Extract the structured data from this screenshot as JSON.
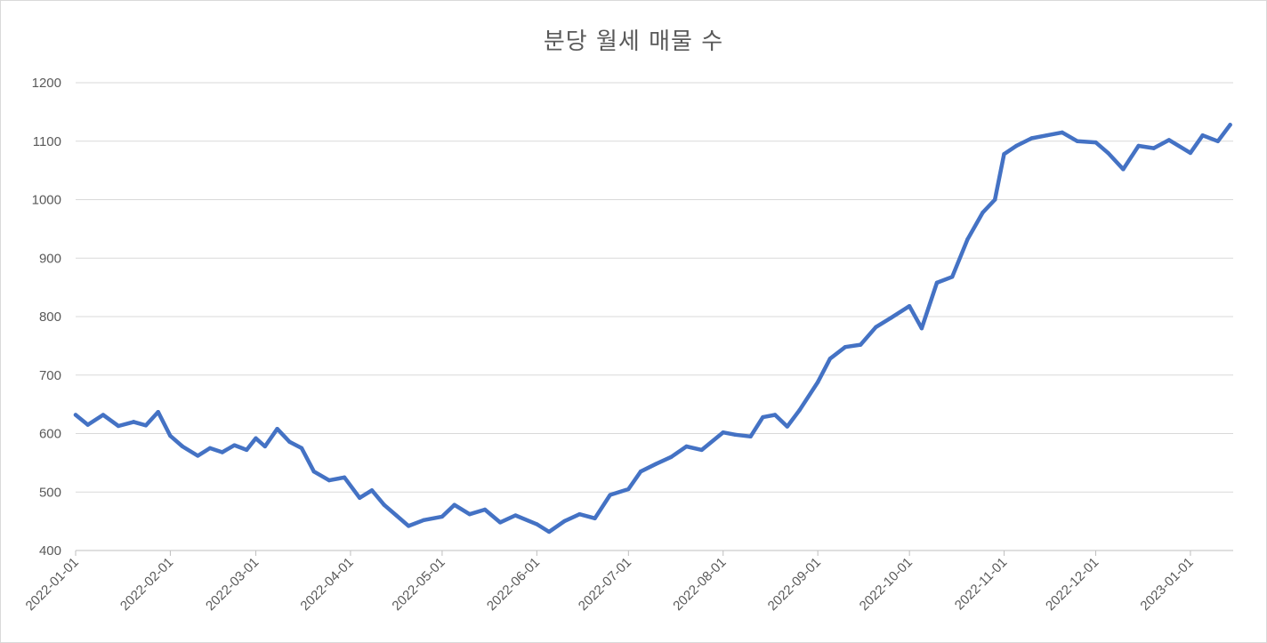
{
  "chart_data": {
    "type": "line",
    "title": "분당 월세 매물 수",
    "xlabel": "",
    "ylabel": "",
    "ylim": [
      400,
      1200
    ],
    "yticks": [
      400,
      500,
      600,
      700,
      800,
      900,
      1000,
      1100,
      1200
    ],
    "xticks": [
      "2022-01-01",
      "2022-02-01",
      "2022-03-01",
      "2022-04-01",
      "2022-05-01",
      "2022-06-01",
      "2022-07-01",
      "2022-08-01",
      "2022-09-01",
      "2022-10-01",
      "2022-11-01",
      "2022-12-01",
      "2023-01-01"
    ],
    "xlim": [
      "2022-01-01",
      "2023-01-15"
    ],
    "grid": true,
    "colors": {
      "line": "#4472c4",
      "grid": "#d9d9d9",
      "axis": "#bfbfbf",
      "text": "#595959"
    },
    "series": [
      {
        "x": [
          "2022-01-01",
          "2022-01-05",
          "2022-01-10",
          "2022-01-15",
          "2022-01-20",
          "2022-01-24",
          "2022-01-28",
          "2022-02-01",
          "2022-02-05",
          "2022-02-10",
          "2022-02-14",
          "2022-02-18",
          "2022-02-22",
          "2022-02-26",
          "2022-03-01",
          "2022-03-04",
          "2022-03-08",
          "2022-03-12",
          "2022-03-16",
          "2022-03-20",
          "2022-03-25",
          "2022-03-30",
          "2022-04-04",
          "2022-04-08",
          "2022-04-12",
          "2022-04-16",
          "2022-04-20",
          "2022-04-25",
          "2022-05-01",
          "2022-05-05",
          "2022-05-10",
          "2022-05-15",
          "2022-05-20",
          "2022-05-25",
          "2022-06-01",
          "2022-06-05",
          "2022-06-10",
          "2022-06-15",
          "2022-06-20",
          "2022-06-25",
          "2022-07-01",
          "2022-07-05",
          "2022-07-10",
          "2022-07-15",
          "2022-07-20",
          "2022-07-25",
          "2022-08-01",
          "2022-08-05",
          "2022-08-10",
          "2022-08-14",
          "2022-08-18",
          "2022-08-22",
          "2022-08-26",
          "2022-09-01",
          "2022-09-05",
          "2022-09-10",
          "2022-09-15",
          "2022-09-20",
          "2022-09-25",
          "2022-10-01",
          "2022-10-05",
          "2022-10-10",
          "2022-10-15",
          "2022-10-20",
          "2022-10-25",
          "2022-10-29",
          "2022-11-01",
          "2022-11-05",
          "2022-11-10",
          "2022-11-15",
          "2022-11-20",
          "2022-11-25",
          "2022-12-01",
          "2022-12-05",
          "2022-12-10",
          "2022-12-15",
          "2022-12-20",
          "2022-12-25",
          "2023-01-01",
          "2023-01-05",
          "2023-01-10",
          "2023-01-14"
        ],
        "values": [
          632,
          615,
          632,
          613,
          620,
          614,
          637,
          596,
          578,
          562,
          575,
          568,
          580,
          572,
          592,
          578,
          608,
          586,
          575,
          535,
          520,
          525,
          490,
          503,
          478,
          460,
          442,
          452,
          458,
          478,
          462,
          470,
          448,
          460,
          445,
          432,
          450,
          462,
          455,
          495,
          505,
          535,
          548,
          560,
          578,
          572,
          602,
          598,
          595,
          628,
          632,
          612,
          640,
          688,
          728,
          748,
          752,
          782,
          798,
          818,
          780,
          858,
          868,
          932,
          978,
          1000,
          1078,
          1092,
          1105,
          1110,
          1115,
          1100,
          1098,
          1080,
          1052,
          1092,
          1088,
          1102,
          1080,
          1110,
          1100,
          1128
        ]
      }
    ]
  }
}
